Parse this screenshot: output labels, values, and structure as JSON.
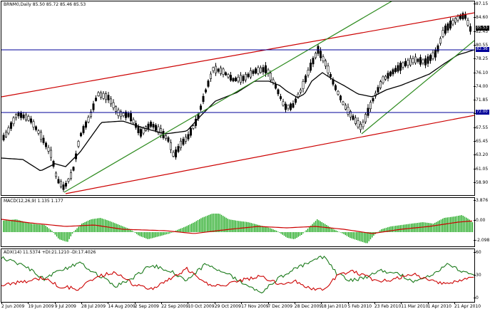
{
  "chart": {
    "symbol_label": "BRNM0,Daily",
    "ohlc_label": "85.50 85.72 85.46 85.53",
    "macd_label": "MACD(12,26,9) 1.135 1.177",
    "adx_label": "ADX(14) 11.5374 +DI:21.1210 -DI:17.4026",
    "price_axis": [
      "87.15",
      "84.60",
      "82.45",
      "80.55",
      "78.25",
      "76.10",
      "74.00",
      "71.85",
      "69.70",
      "67.55",
      "65.45",
      "63.20",
      "61.05",
      "58.90"
    ],
    "price_tag_current": "85.53",
    "price_tag_upper_level": "82.36",
    "price_tag_lower_level": "72.00",
    "macd_axis": [
      "3.876",
      "0.00",
      "-2.098"
    ],
    "adx_axis": [
      "60",
      "30",
      "0"
    ],
    "time_axis": [
      "2 Jun 2009",
      "19 Jun 2009",
      "9 Jul 2009",
      "28 Jul 2009",
      "14 Aug 2009",
      "2 Sep 2009",
      "22 Sep 2009",
      "10 Oct 2009",
      "29 Oct 2009",
      "17 Nov 2009",
      "7 Dec 2009",
      "28 Dec 2009",
      "18 Jan 2010",
      "5 Feb 2010",
      "23 Feb 2010",
      "11 Mar 2010",
      "1 Apr 2010",
      "21 Apr 2010"
    ]
  },
  "colors": {
    "background": "#ffffff",
    "bullish_bar": "#ffffff",
    "bearish_bar": "#000000",
    "moving_average": "#000000",
    "red_channel": "#cc0000",
    "green_channel": "#2e8b1f",
    "blue_level": "#000099",
    "macd_histogram": "#22aa22",
    "macd_signal": "#cc0000",
    "adx_plus_di": "#1a7a1a",
    "adx_minus_di": "#cc0000",
    "tag_current": "#000000",
    "tag_level": "#000099"
  }
}
